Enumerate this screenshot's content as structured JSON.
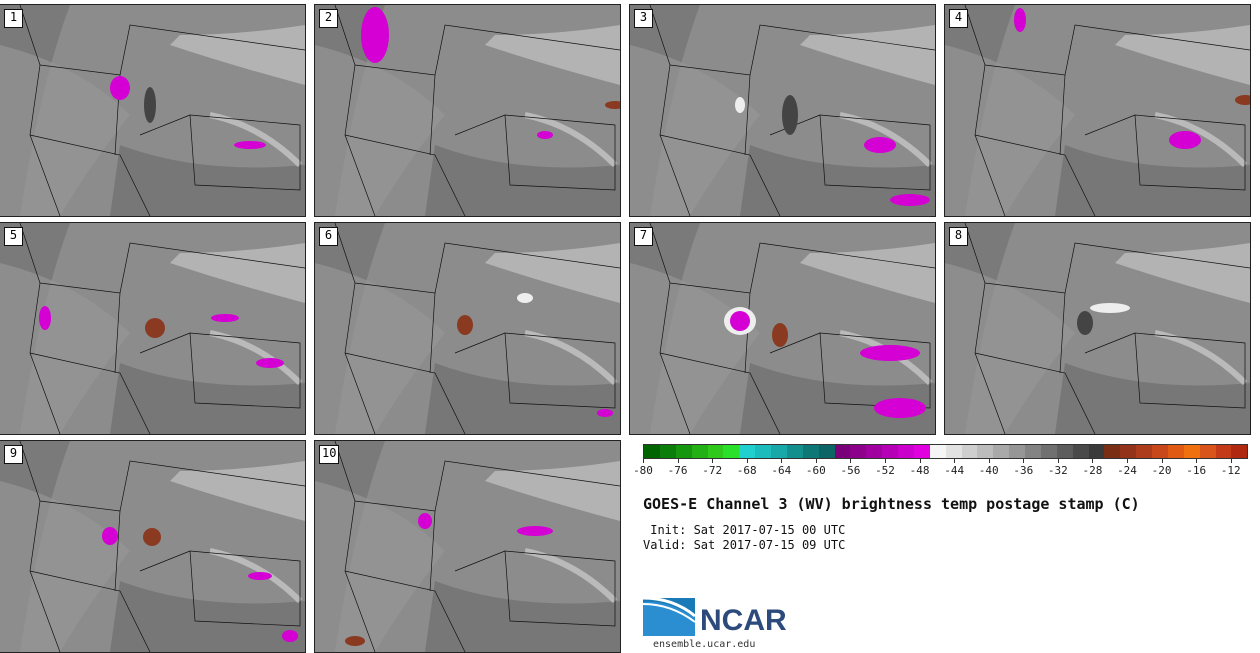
{
  "panels": [
    {
      "label": "1"
    },
    {
      "label": "2"
    },
    {
      "label": "3"
    },
    {
      "label": "4"
    },
    {
      "label": "5"
    },
    {
      "label": "6"
    },
    {
      "label": "7"
    },
    {
      "label": "8"
    },
    {
      "label": "9"
    },
    {
      "label": "10"
    }
  ],
  "colorbar": {
    "min": -80,
    "max": -10,
    "tick_labels": [
      "-80",
      "-76",
      "-72",
      "-68",
      "-64",
      "-60",
      "-56",
      "-52",
      "-48",
      "-44",
      "-40",
      "-36",
      "-32",
      "-28",
      "-24",
      "-20",
      "-16",
      "-12"
    ],
    "colors": [
      "#006400",
      "#0a7d0a",
      "#15960f",
      "#22b014",
      "#2ec91a",
      "#2be02a",
      "#1fd0cf",
      "#1bbcbb",
      "#17a8a7",
      "#138f8e",
      "#0e7877",
      "#0a6564",
      "#7a007a",
      "#8c008c",
      "#a100a1",
      "#b600b6",
      "#cc00cc",
      "#e000e0",
      "#f5f5f5",
      "#e2e2e2",
      "#cfcfcf",
      "#bcbcbc",
      "#a9a9a9",
      "#969696",
      "#838383",
      "#707070",
      "#5d5d5d",
      "#4a4a4a",
      "#3a3a3a",
      "#7a2e14",
      "#93331a",
      "#ad3c1c",
      "#c8481c",
      "#e05a14",
      "#f07010",
      "#d8541a",
      "#c23a18",
      "#b02810"
    ]
  },
  "title": "GOES-E Channel 3 (WV) brightness temp postage stamp (C)",
  "init": " Init: Sat 2017-07-15 00 UTC",
  "valid": "Valid: Sat 2017-07-15 09 UTC",
  "logo": {
    "name": "NCAR",
    "url": "ensemble.ucar.edu"
  },
  "colors": {
    "magenta": "#d400d4",
    "brown": "#8a3a20",
    "land": "#8a8a8a",
    "light": "#c8c8c8",
    "dark": "#555555"
  }
}
